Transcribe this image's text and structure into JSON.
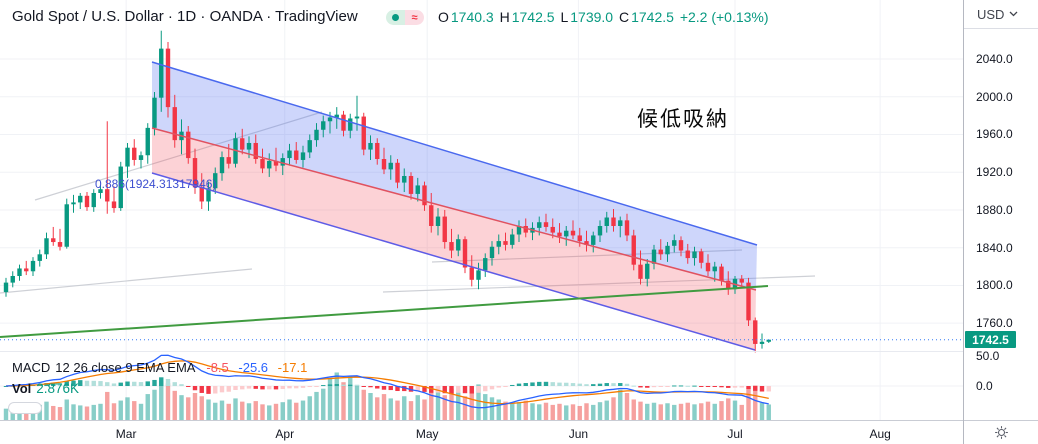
{
  "header": {
    "title": "Gold Spot / U.S. Dollar · 1D · OANDA · TradingView",
    "status": {
      "market_dot_icon": "market-open-dot",
      "approx_icon": "≈"
    },
    "ohlc": {
      "open_label": "O",
      "open": "1740.3",
      "high_label": "H",
      "high": "1742.5",
      "low_label": "L",
      "low": "1739.0",
      "close_label": "C",
      "close": "1742.5",
      "change": "+2.2 (+0.13%)"
    }
  },
  "axis": {
    "currency": "USD",
    "last_price_label": "1742.5"
  },
  "indicators": {
    "macd": {
      "name": "MACD",
      "params": "12 26 close 9 EMA EMA",
      "hist_value": "-8.5",
      "macd_value": "-25.6",
      "signal_value": "-17.1"
    },
    "volume": {
      "label": "Vol",
      "value": "2.876K"
    }
  },
  "annotations": {
    "note": "候低吸納",
    "fib_label": "0.886(1924.31317946)"
  },
  "chart_data": {
    "type": "candlestick",
    "title": "Gold Spot / U.S. Dollar",
    "interval": "1D",
    "exchange": "OANDA",
    "x_axis": [
      "Mar",
      "Apr",
      "May",
      "Jun",
      "Jul",
      "Aug"
    ],
    "y_ticks": [
      2040.0,
      2000.0,
      1960.0,
      1920.0,
      1880.0,
      1840.0,
      1800.0,
      1760.0
    ],
    "macd_ticks": [
      "50.0",
      "0.0"
    ],
    "ylim": [
      1725,
      2075
    ],
    "last_price": 1742.5,
    "legend_position": "top-left",
    "grid": true,
    "candles": [
      [
        1793,
        1808,
        1788,
        1803
      ],
      [
        1803,
        1815,
        1798,
        1810
      ],
      [
        1810,
        1822,
        1805,
        1818
      ],
      [
        1818,
        1826,
        1811,
        1815
      ],
      [
        1815,
        1830,
        1810,
        1826
      ],
      [
        1826,
        1838,
        1820,
        1833
      ],
      [
        1833,
        1856,
        1828,
        1850
      ],
      [
        1850,
        1862,
        1842,
        1846
      ],
      [
        1846,
        1860,
        1837,
        1841
      ],
      [
        1841,
        1892,
        1839,
        1886
      ],
      [
        1886,
        1896,
        1877,
        1888
      ],
      [
        1888,
        1898,
        1881,
        1895
      ],
      [
        1895,
        1899,
        1879,
        1883
      ],
      [
        1883,
        1902,
        1878,
        1898
      ],
      [
        1898,
        1906,
        1892,
        1902
      ],
      [
        1902,
        1974,
        1876,
        1889
      ],
      [
        1889,
        1905,
        1877,
        1882
      ],
      [
        1882,
        1931,
        1879,
        1926
      ],
      [
        1926,
        1951,
        1914,
        1946
      ],
      [
        1946,
        1955,
        1927,
        1933
      ],
      [
        1933,
        1942,
        1924,
        1938
      ],
      [
        1938,
        1972,
        1929,
        1967
      ],
      [
        1967,
        2005,
        1959,
        1999
      ],
      [
        1999,
        2070,
        1984,
        2051
      ],
      [
        2051,
        2058,
        1978,
        1989
      ],
      [
        1989,
        2002,
        1946,
        1954
      ],
      [
        1954,
        1976,
        1939,
        1963
      ],
      [
        1963,
        1969,
        1929,
        1935
      ],
      [
        1935,
        1945,
        1897,
        1904
      ],
      [
        1904,
        1919,
        1881,
        1889
      ],
      [
        1889,
        1910,
        1879,
        1903
      ],
      [
        1903,
        1925,
        1897,
        1919
      ],
      [
        1919,
        1942,
        1911,
        1936
      ],
      [
        1936,
        1950,
        1924,
        1929
      ],
      [
        1929,
        1962,
        1925,
        1956
      ],
      [
        1956,
        1966,
        1939,
        1944
      ],
      [
        1944,
        1958,
        1935,
        1951
      ],
      [
        1951,
        1960,
        1929,
        1934
      ],
      [
        1934,
        1945,
        1919,
        1924
      ],
      [
        1924,
        1940,
        1915,
        1932
      ],
      [
        1932,
        1946,
        1921,
        1927
      ],
      [
        1927,
        1940,
        1917,
        1935
      ],
      [
        1935,
        1950,
        1927,
        1943
      ],
      [
        1943,
        1952,
        1929,
        1933
      ],
      [
        1933,
        1948,
        1925,
        1941
      ],
      [
        1941,
        1960,
        1935,
        1954
      ],
      [
        1954,
        1972,
        1947,
        1965
      ],
      [
        1965,
        1980,
        1957,
        1974
      ],
      [
        1974,
        1984,
        1961,
        1978
      ],
      [
        1978,
        1989,
        1966,
        1981
      ],
      [
        1981,
        1985,
        1958,
        1964
      ],
      [
        1964,
        1982,
        1956,
        1977
      ],
      [
        1977,
        2001,
        1964,
        1979
      ],
      [
        1979,
        1983,
        1938,
        1944
      ],
      [
        1944,
        1959,
        1933,
        1951
      ],
      [
        1951,
        1956,
        1928,
        1934
      ],
      [
        1934,
        1946,
        1918,
        1923
      ],
      [
        1923,
        1938,
        1912,
        1930
      ],
      [
        1930,
        1934,
        1903,
        1909
      ],
      [
        1909,
        1924,
        1899,
        1916
      ],
      [
        1916,
        1920,
        1891,
        1897
      ],
      [
        1897,
        1914,
        1889,
        1906
      ],
      [
        1906,
        1910,
        1879,
        1885
      ],
      [
        1885,
        1898,
        1856,
        1863
      ],
      [
        1863,
        1882,
        1853,
        1873
      ],
      [
        1873,
        1880,
        1839,
        1846
      ],
      [
        1846,
        1860,
        1829,
        1837
      ],
      [
        1837,
        1854,
        1831,
        1849
      ],
      [
        1849,
        1852,
        1813,
        1819
      ],
      [
        1819,
        1832,
        1799,
        1806
      ],
      [
        1806,
        1824,
        1796,
        1816
      ],
      [
        1816,
        1834,
        1809,
        1829
      ],
      [
        1829,
        1847,
        1821,
        1841
      ],
      [
        1841,
        1854,
        1833,
        1847
      ],
      [
        1847,
        1856,
        1837,
        1843
      ],
      [
        1843,
        1860,
        1839,
        1854
      ],
      [
        1854,
        1869,
        1846,
        1863
      ],
      [
        1863,
        1871,
        1851,
        1856
      ],
      [
        1856,
        1867,
        1848,
        1861
      ],
      [
        1861,
        1873,
        1853,
        1867
      ],
      [
        1867,
        1876,
        1857,
        1862
      ],
      [
        1862,
        1871,
        1850,
        1856
      ],
      [
        1856,
        1866,
        1845,
        1852
      ],
      [
        1852,
        1863,
        1842,
        1858
      ],
      [
        1858,
        1869,
        1849,
        1853
      ],
      [
        1853,
        1861,
        1841,
        1847
      ],
      [
        1847,
        1858,
        1836,
        1843
      ],
      [
        1843,
        1857,
        1835,
        1853
      ],
      [
        1853,
        1869,
        1846,
        1863
      ],
      [
        1863,
        1878,
        1856,
        1872
      ],
      [
        1872,
        1881,
        1857,
        1863
      ],
      [
        1863,
        1873,
        1851,
        1869
      ],
      [
        1869,
        1876,
        1847,
        1853
      ],
      [
        1853,
        1859,
        1816,
        1822
      ],
      [
        1822,
        1837,
        1801,
        1807
      ],
      [
        1807,
        1828,
        1799,
        1823
      ],
      [
        1823,
        1843,
        1817,
        1838
      ],
      [
        1838,
        1849,
        1827,
        1833
      ],
      [
        1833,
        1846,
        1825,
        1842
      ],
      [
        1842,
        1854,
        1835,
        1848
      ],
      [
        1848,
        1852,
        1831,
        1837
      ],
      [
        1837,
        1844,
        1823,
        1829
      ],
      [
        1829,
        1841,
        1821,
        1836
      ],
      [
        1836,
        1839,
        1818,
        1824
      ],
      [
        1824,
        1833,
        1810,
        1815
      ],
      [
        1815,
        1825,
        1804,
        1820
      ],
      [
        1820,
        1823,
        1800,
        1805
      ],
      [
        1805,
        1815,
        1790,
        1796
      ],
      [
        1796,
        1810,
        1791,
        1807
      ],
      [
        1807,
        1811,
        1798,
        1803
      ],
      [
        1803,
        1808,
        1757,
        1763
      ],
      [
        1763,
        1766,
        1729,
        1738
      ],
      [
        1738,
        1749,
        1733,
        1740.3
      ],
      [
        1740.3,
        1742.5,
        1739,
        1742.5
      ]
    ],
    "volume_k": [
      2.1,
      2.4,
      2.2,
      1.9,
      2.5,
      2.8,
      3.4,
      2.6,
      2.4,
      3.8,
      2.9,
      2.7,
      2.5,
      2.8,
      3.0,
      5.2,
      3.1,
      3.6,
      4.2,
      3.5,
      3.0,
      4.8,
      5.6,
      7.2,
      6.8,
      5.4,
      4.6,
      4.2,
      5.0,
      4.4,
      3.8,
      3.2,
      3.6,
      3.0,
      4.0,
      3.4,
      3.1,
      3.5,
      2.9,
      2.7,
      3.0,
      3.3,
      3.8,
      3.2,
      3.6,
      4.4,
      5.2,
      5.8,
      7.6,
      8.8,
      7.0,
      8.2,
      6.4,
      5.6,
      5.0,
      4.2,
      4.8,
      4.0,
      3.6,
      4.4,
      3.5,
      4.6,
      3.8,
      5.4,
      6.2,
      4.6,
      5.8,
      5.2,
      4.4,
      6.0,
      6.6,
      4.8,
      4.2,
      3.8,
      3.4,
      3.0,
      3.3,
      3.6,
      3.1,
      2.9,
      3.2,
      2.8,
      3.0,
      2.7,
      2.9,
      2.6,
      3.1,
      2.8,
      3.3,
      3.6,
      4.2,
      5.6,
      5.0,
      3.8,
      3.4,
      3.0,
      3.2,
      2.9,
      3.1,
      2.8,
      3.0,
      3.2,
      2.9,
      3.1,
      3.4,
      3.0,
      3.5,
      4.0,
      3.6,
      2.8,
      5.8,
      6.4,
      3.2,
      2.876
    ],
    "colors": {
      "up": "#089981",
      "down": "#f23645",
      "vol_up": "rgba(38,166,154,0.55)",
      "vol_down": "rgba(239,83,80,0.55)",
      "macd_line": "#2962ff",
      "signal_line": "#f57c00",
      "hist_up": "#26a69a",
      "hist_up_weak": "#b2dfdb",
      "hist_down": "#f23645",
      "hist_down_weak": "#fccbcd",
      "channel_top_fill": "rgba(79,108,240,0.28)",
      "channel_bottom_fill": "rgba(242,82,96,0.26)",
      "channel_line": "#4a69ee",
      "channel_median": "#e05260",
      "channel_lower": "#5e5ce6",
      "trendline_green": "#409b40",
      "gray_ray": "#c9ccd2",
      "price_line": "#3179f5",
      "grid": "#f0f2f6"
    }
  }
}
